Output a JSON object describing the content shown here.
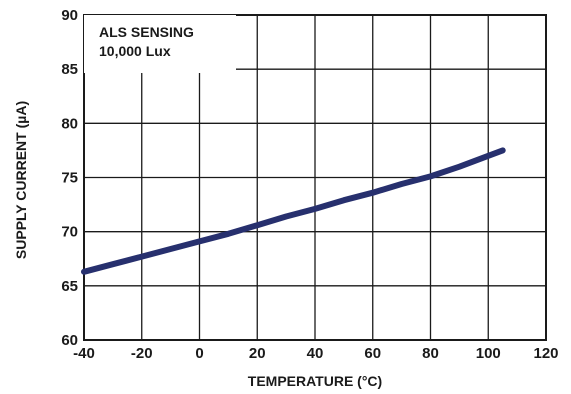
{
  "chart_data": {
    "type": "line",
    "title": "",
    "xlabel": "TEMPERATURE (°C)",
    "ylabel": "SUPPLY CURRENT (µA)",
    "xlim": [
      -40,
      120
    ],
    "ylim": [
      60,
      90
    ],
    "x_ticks": [
      "-40",
      "-20",
      "0",
      "20",
      "40",
      "60",
      "80",
      "100",
      "120"
    ],
    "y_ticks": [
      "60",
      "65",
      "70",
      "75",
      "80",
      "85",
      "90"
    ],
    "annotations": [
      "ALS SENSING",
      "10,000 Lux"
    ],
    "grid": true,
    "line_color": "#27306e",
    "series": [
      {
        "x": [
          -40,
          -30,
          -20,
          -10,
          0,
          10,
          20,
          30,
          40,
          50,
          60,
          70,
          80,
          90,
          100,
          105
        ],
        "y": [
          66.3,
          67.0,
          67.7,
          68.4,
          69.1,
          69.8,
          70.6,
          71.4,
          72.1,
          72.9,
          73.6,
          74.4,
          75.1,
          76.0,
          77.0,
          77.5
        ]
      }
    ]
  }
}
